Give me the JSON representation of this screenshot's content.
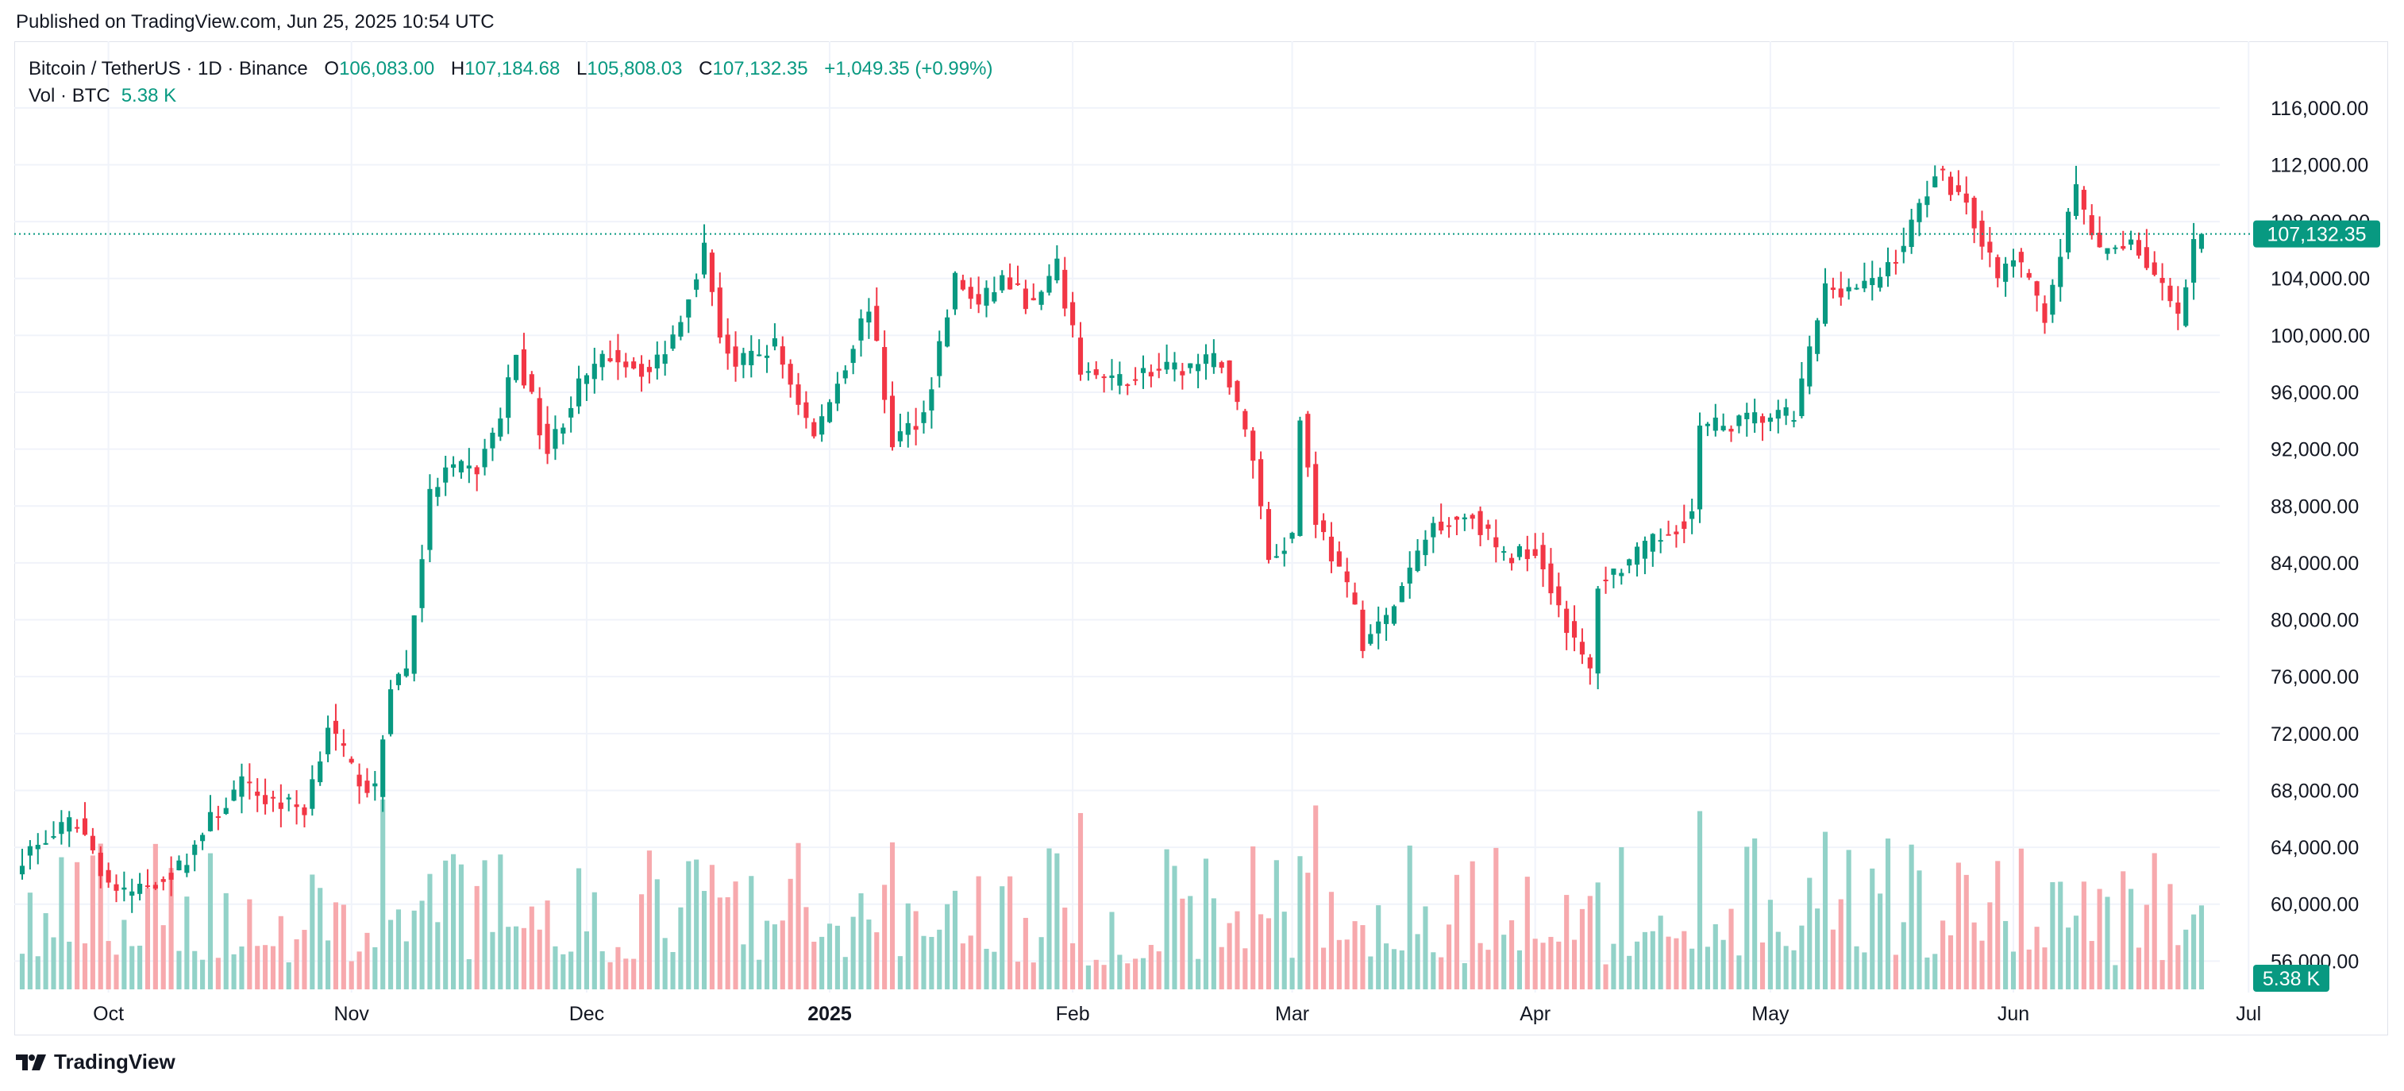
{
  "published": "Published on TradingView.com, Jun 25, 2025 10:54 UTC",
  "legend": {
    "symbol": "Bitcoin / TetherUS · 1D · Binance",
    "o_label": "O",
    "o": "106,083.00",
    "h_label": "H",
    "h": "107,184.68",
    "l_label": "L",
    "l": "105,808.03",
    "c_label": "C",
    "c": "107,132.35",
    "change": "+1,049.35 (+0.99%)",
    "vol_label": "Vol · BTC",
    "vol": "5.38 K"
  },
  "brand": "TradingView",
  "colors": {
    "up": "#089981",
    "down": "#f23645",
    "up_vol": "#92d2c8",
    "down_vol": "#f7a9ad",
    "grid": "#f0f3fa",
    "axis_text": "#131722"
  },
  "chart_data": {
    "type": "candlestick",
    "title": "Bitcoin / TetherUS · 1D · Binance",
    "ylim": [
      52000,
      118000
    ],
    "y_ticks": [
      "56,000.00",
      "60,000.00",
      "64,000.00",
      "68,000.00",
      "72,000.00",
      "76,000.00",
      "80,000.00",
      "84,000.00",
      "88,000.00",
      "92,000.00",
      "96,000.00",
      "100,000.00",
      "104,000.00",
      "108,000.00",
      "112,000.00",
      "116,000.00"
    ],
    "y_tick_values": [
      56000,
      60000,
      64000,
      68000,
      72000,
      76000,
      80000,
      84000,
      88000,
      92000,
      96000,
      100000,
      104000,
      108000,
      112000,
      116000
    ],
    "x_labels": [
      {
        "text": "Oct",
        "date": "2024-10-01",
        "bold": false
      },
      {
        "text": "Nov",
        "date": "2024-11-01",
        "bold": false
      },
      {
        "text": "Dec",
        "date": "2024-12-01",
        "bold": false
      },
      {
        "text": "2025",
        "date": "2025-01-01",
        "bold": true
      },
      {
        "text": "Feb",
        "date": "2025-02-01",
        "bold": false
      },
      {
        "text": "Mar",
        "date": "2025-03-01",
        "bold": false
      },
      {
        "text": "Apr",
        "date": "2025-04-01",
        "bold": false
      },
      {
        "text": "May",
        "date": "2025-05-01",
        "bold": false
      },
      {
        "text": "Jun",
        "date": "2025-06-01",
        "bold": false
      },
      {
        "text": "Jul",
        "date": "2025-07-01",
        "bold": false
      }
    ],
    "first_date": "2024-09-20",
    "last_price": 107132.35,
    "last_price_label": "107,132.35",
    "last_volume_label": "5.38 K",
    "close_path": [
      [
        "2024-09-20",
        63400
      ],
      [
        "2024-09-27",
        65900
      ],
      [
        "2024-10-01",
        61500
      ],
      [
        "2024-10-03",
        60600
      ],
      [
        "2024-10-10",
        62500
      ],
      [
        "2024-10-14",
        65900
      ],
      [
        "2024-10-18",
        68400
      ],
      [
        "2024-10-21",
        67400
      ],
      [
        "2024-10-26",
        66700
      ],
      [
        "2024-10-29",
        72700
      ],
      [
        "2024-11-01",
        69400
      ],
      [
        "2024-11-04",
        67800
      ],
      [
        "2024-11-06",
        75600
      ],
      [
        "2024-11-08",
        76500
      ],
      [
        "2024-11-11",
        88700
      ],
      [
        "2024-11-13",
        90400
      ],
      [
        "2024-11-17",
        90600
      ],
      [
        "2024-11-20",
        94300
      ],
      [
        "2024-11-22",
        98900
      ],
      [
        "2024-11-26",
        91900
      ],
      [
        "2024-11-30",
        96400
      ],
      [
        "2024-12-04",
        98700
      ],
      [
        "2024-12-09",
        97400
      ],
      [
        "2024-12-12",
        100000
      ],
      [
        "2024-12-16",
        106100
      ],
      [
        "2024-12-18",
        100200
      ],
      [
        "2024-12-20",
        97800
      ],
      [
        "2024-12-25",
        99300
      ],
      [
        "2024-12-30",
        92800
      ],
      [
        "2025-01-03",
        98100
      ],
      [
        "2025-01-06",
        102200
      ],
      [
        "2025-01-09",
        92500
      ],
      [
        "2025-01-13",
        94500
      ],
      [
        "2025-01-17",
        104000
      ],
      [
        "2025-01-20",
        102000
      ],
      [
        "2025-01-23",
        104000
      ],
      [
        "2025-01-27",
        102000
      ],
      [
        "2025-01-30",
        104700
      ],
      [
        "2025-02-02",
        97700
      ],
      [
        "2025-02-06",
        96600
      ],
      [
        "2025-02-10",
        97400
      ],
      [
        "2025-02-14",
        97500
      ],
      [
        "2025-02-20",
        98300
      ],
      [
        "2025-02-24",
        91500
      ],
      [
        "2025-02-26",
        84300
      ],
      [
        "2025-03-01",
        86000
      ],
      [
        "2025-03-02",
        94200
      ],
      [
        "2025-03-04",
        87200
      ],
      [
        "2025-03-09",
        80700
      ],
      [
        "2025-03-10",
        78500
      ],
      [
        "2025-03-13",
        80000
      ],
      [
        "2025-03-19",
        86800
      ],
      [
        "2025-03-24",
        87400
      ],
      [
        "2025-03-28",
        84300
      ],
      [
        "2025-04-01",
        85100
      ],
      [
        "2025-04-06",
        78300
      ],
      [
        "2025-04-08",
        76300
      ],
      [
        "2025-04-09",
        82600
      ],
      [
        "2025-04-14",
        84500
      ],
      [
        "2025-04-21",
        87500
      ],
      [
        "2025-04-22",
        93400
      ],
      [
        "2025-04-30",
        94200
      ],
      [
        "2025-05-04",
        94300
      ],
      [
        "2025-05-08",
        103300
      ],
      [
        "2025-05-14",
        103500
      ],
      [
        "2025-05-18",
        106400
      ],
      [
        "2025-05-22",
        111700
      ],
      [
        "2025-05-26",
        109400
      ],
      [
        "2025-05-30",
        103900
      ],
      [
        "2025-06-01",
        105600
      ],
      [
        "2025-06-05",
        101500
      ],
      [
        "2025-06-09",
        110300
      ],
      [
        "2025-06-12",
        105600
      ],
      [
        "2025-06-16",
        106800
      ],
      [
        "2025-06-20",
        103300
      ],
      [
        "2025-06-22",
        100900
      ],
      [
        "2025-06-24",
        106100
      ],
      [
        "2025-06-25",
        107132
      ]
    ]
  }
}
